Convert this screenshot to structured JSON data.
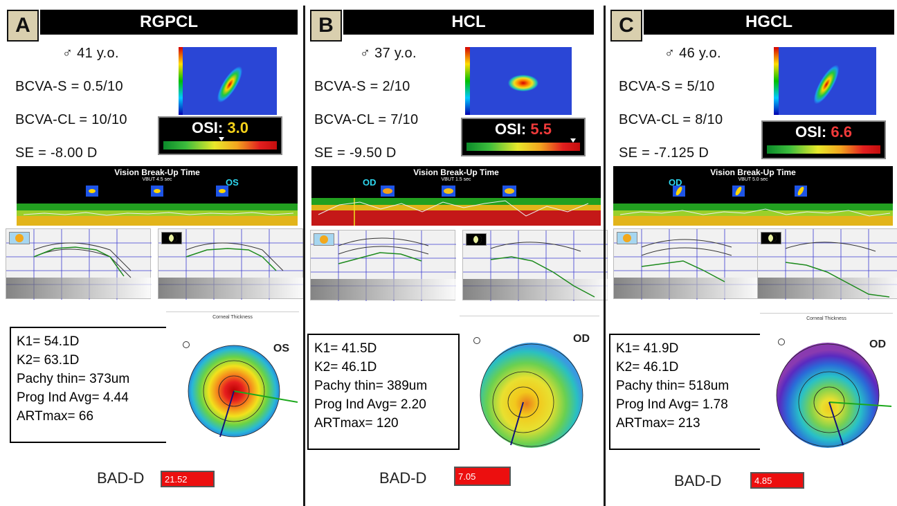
{
  "panels": [
    {
      "letter": "A",
      "title": "RGPCL",
      "age": "♂ 41 y.o.",
      "bcva_s": "BCVA-S = 0.5/10",
      "bcva_cl": "BCVA-CL = 10/10",
      "se": "SE = -8.00 D",
      "osi_label": "OSI:",
      "osi_value": "3.0",
      "osi_color": "#f5d21a",
      "vbut_title": "Vision Break-Up Time",
      "vbut_sub": "VBUT 4.5 sec",
      "eye": "OS",
      "k1": "K1= 54.1D",
      "k2": "K2= 63.1D",
      "pachy": "Pachy thin= 373um",
      "prog": "Prog Ind Avg= 4.44",
      "art": "ARTmax= 66",
      "topo_title": "Corneal Thickness",
      "topo_eye": "OS",
      "bad_label": "BAD-D",
      "bad_value": "21.52"
    },
    {
      "letter": "B",
      "title": "HCL",
      "age": "♂ 37 y.o.",
      "bcva_s": "BCVA-S = 2/10",
      "bcva_cl": "BCVA-CL = 7/10",
      "se": "SE = -9.50 D",
      "osi_label": "OSI:",
      "osi_value": "5.5",
      "osi_color": "#f03a3a",
      "vbut_title": "Vision Break-Up Time",
      "vbut_sub": "VBUT 1.5 sec",
      "eye": "OD",
      "k1": "K1= 41.5D",
      "k2": "K2= 46.1D",
      "pachy": "Pachy thin= 389um",
      "prog": "Prog Ind Avg= 2.20",
      "art": "ARTmax= 120",
      "topo_title": "",
      "topo_eye": "OD",
      "bad_label": "BAD-D",
      "bad_value": "7.05"
    },
    {
      "letter": "C",
      "title": "HGCL",
      "age": "♂ 46 y.o.",
      "bcva_s": "BCVA-S = 5/10",
      "bcva_cl": "BCVA-CL = 8/10",
      "se": "SE = -7.125 D",
      "osi_label": "OSI:",
      "osi_value": "6.6",
      "osi_color": "#f03a3a",
      "vbut_title": "Vision Break-Up Time",
      "vbut_sub": "VBUT 5.0 sec",
      "eye": "OD",
      "k1": "K1= 41.9D",
      "k2": "K2= 46.1D",
      "pachy": "Pachy thin= 518um",
      "prog": "Prog Ind Avg= 1.78",
      "art": "ARTmax= 213",
      "topo_title": "Corneal Thickness",
      "topo_eye": "OD",
      "bad_label": "BAD-D",
      "bad_value": "4.85"
    }
  ],
  "colors": {
    "title_bar": "#000000",
    "letter_box": "#d9cfae",
    "bad_box": "#ec0f0f"
  }
}
